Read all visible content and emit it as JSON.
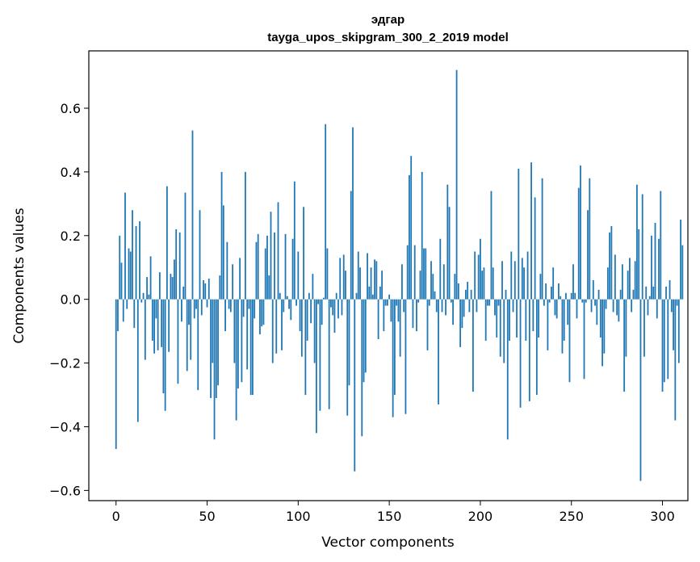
{
  "chart_data": {
    "type": "bar",
    "title": "эдгар",
    "subtitle": "tayga_upos_skipgram_300_2_2019 model",
    "xlabel": "Vector components",
    "ylabel": "Components values",
    "xlim": [
      -14.95,
      313.95
    ],
    "ylim": [
      -0.632,
      0.78
    ],
    "xticks": [
      0,
      50,
      100,
      150,
      200,
      250,
      300
    ],
    "yticks": [
      -0.6,
      -0.4,
      -0.2,
      0.0,
      0.2,
      0.4,
      0.6
    ],
    "xtick_labels": [
      "0",
      "50",
      "100",
      "150",
      "200",
      "250",
      "300"
    ],
    "ytick_labels": [
      "−0.6",
      "−0.4",
      "−0.2",
      "0.0",
      "0.2",
      "0.4",
      "0.6"
    ],
    "bar_color": "#1f77b4",
    "grid": false,
    "legend": "none",
    "values": [
      -0.47,
      -0.1,
      0.2,
      0.115,
      -0.07,
      0.335,
      -0.03,
      0.16,
      0.15,
      0.28,
      -0.09,
      0.23,
      -0.385,
      0.245,
      -0.01,
      0.02,
      -0.19,
      0.07,
      0.015,
      0.135,
      -0.13,
      -0.17,
      -0.06,
      -0.16,
      0.085,
      -0.15,
      -0.295,
      -0.35,
      0.355,
      -0.165,
      0.08,
      0.07,
      0.125,
      0.22,
      -0.265,
      0.21,
      -0.07,
      0.04,
      0.335,
      -0.225,
      -0.08,
      -0.19,
      0.53,
      -0.06,
      -0.03,
      -0.285,
      0.28,
      -0.05,
      0.06,
      0.05,
      -0.025,
      0.065,
      -0.31,
      -0.2,
      -0.44,
      -0.31,
      -0.27,
      0.075,
      0.4,
      0.295,
      -0.1,
      0.18,
      -0.03,
      -0.04,
      0.11,
      -0.2,
      -0.38,
      -0.28,
      0.13,
      -0.26,
      -0.055,
      0.4,
      -0.22,
      -0.03,
      -0.3,
      -0.3,
      -0.06,
      0.18,
      0.205,
      -0.11,
      -0.085,
      -0.08,
      0.16,
      0.2,
      0.075,
      0.275,
      -0.2,
      0.21,
      -0.17,
      0.305,
      0.02,
      -0.16,
      -0.04,
      0.205,
      0.01,
      -0.03,
      -0.065,
      0.19,
      0.37,
      -0.02,
      0.15,
      -0.1,
      -0.18,
      0.29,
      -0.3,
      -0.13,
      0.02,
      -0.075,
      0.08,
      -0.2,
      -0.42,
      -0.015,
      -0.35,
      -0.08,
      0.005,
      0.55,
      0.16,
      -0.345,
      -0.025,
      -0.05,
      -0.105,
      0.02,
      -0.06,
      0.13,
      -0.05,
      0.14,
      0.09,
      -0.365,
      -0.27,
      0.34,
      0.54,
      -0.54,
      0.02,
      0.15,
      0.1,
      -0.43,
      -0.26,
      -0.23,
      0.145,
      0.04,
      0.1,
      0.015,
      0.125,
      0.12,
      -0.125,
      0.04,
      0.09,
      -0.1,
      -0.02,
      -0.02,
      0.015,
      -0.07,
      -0.37,
      -0.3,
      -0.02,
      -0.07,
      -0.18,
      0.11,
      -0.04,
      -0.36,
      0.17,
      0.39,
      0.45,
      -0.09,
      0.17,
      -0.1,
      -0.01,
      0.09,
      0.4,
      0.16,
      0.16,
      -0.16,
      -0.02,
      0.12,
      0.08,
      0.025,
      -0.04,
      -0.33,
      0.19,
      -0.04,
      0.11,
      -0.05,
      0.36,
      0.29,
      -0.01,
      -0.08,
      0.08,
      0.72,
      0.05,
      -0.15,
      -0.09,
      -0.055,
      0.03,
      0.055,
      -0.04,
      0.03,
      -0.29,
      0.15,
      -0.04,
      0.14,
      0.19,
      0.09,
      0.1,
      -0.13,
      -0.02,
      -0.02,
      0.34,
      0.1,
      -0.05,
      -0.12,
      -0.02,
      -0.18,
      0.12,
      -0.2,
      0.03,
      -0.44,
      -0.13,
      0.15,
      -0.04,
      0.12,
      -0.12,
      0.41,
      -0.34,
      0.13,
      0.1,
      -0.13,
      0.15,
      -0.32,
      0.43,
      -0.1,
      0.32,
      -0.3,
      -0.12,
      0.08,
      0.38,
      -0.02,
      0.05,
      -0.16,
      -0.01,
      0.04,
      0.1,
      -0.05,
      -0.06,
      0.05,
      0.01,
      -0.17,
      -0.13,
      0.02,
      -0.08,
      -0.26,
      0.02,
      0.11,
      0.02,
      -0.06,
      0.35,
      0.42,
      -0.01,
      -0.25,
      -0.01,
      0.28,
      0.38,
      -0.04,
      0.06,
      -0.02,
      -0.08,
      0.03,
      -0.12,
      -0.21,
      -0.17,
      -0.03,
      0.1,
      0.21,
      0.23,
      -0.04,
      0.14,
      -0.05,
      -0.07,
      0.03,
      0.11,
      -0.29,
      -0.18,
      0.09,
      0.13,
      -0.04,
      0.03,
      0.12,
      0.36,
      0.22,
      -0.57,
      0.33,
      -0.18,
      0.04,
      -0.05,
      0.01,
      0.2,
      0.04,
      0.24,
      -0.06,
      0.19,
      0.34,
      -0.29,
      -0.26,
      0.04,
      -0.25,
      0.06,
      -0.04,
      -0.16,
      -0.38,
      -0.02,
      -0.2,
      0.25,
      0.17
    ]
  }
}
